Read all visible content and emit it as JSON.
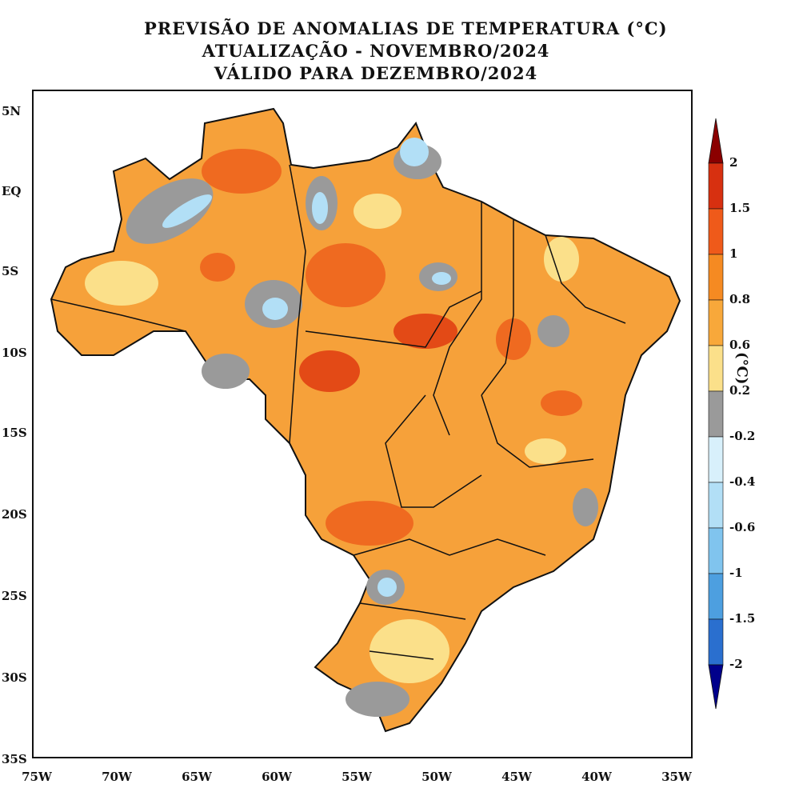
{
  "title": {
    "line1": "PREVISÃO DE ANOMALIAS DE TEMPERATURA (°C)",
    "line2": "ATUALIZAÇÃO - NOVEMBRO/2024",
    "line3": "VÁLIDO PARA DEZEMBRO/2024"
  },
  "axes": {
    "y_ticks": [
      "5N",
      "EQ",
      "5S",
      "10S",
      "15S",
      "20S",
      "25S",
      "30S",
      "35S"
    ],
    "x_ticks": [
      "75W",
      "70W",
      "65W",
      "60W",
      "55W",
      "50W",
      "45W",
      "40W",
      "35W"
    ]
  },
  "colorbar": {
    "unit": "(°C)",
    "levels": [
      "2",
      "1.5",
      "1",
      "0.8",
      "0.6",
      "0.2",
      "-0.2",
      "-0.4",
      "-0.6",
      "-1",
      "-1.5",
      "-2"
    ],
    "colors": [
      "#8b0000",
      "#d73010",
      "#ef5a1a",
      "#f58a22",
      "#f8a83a",
      "#fbe08a",
      "#9a9a9a",
      "#d8f0fb",
      "#b2dff6",
      "#80c4ee",
      "#4d9fe0",
      "#2a6fcf",
      "#00008b"
    ]
  }
}
